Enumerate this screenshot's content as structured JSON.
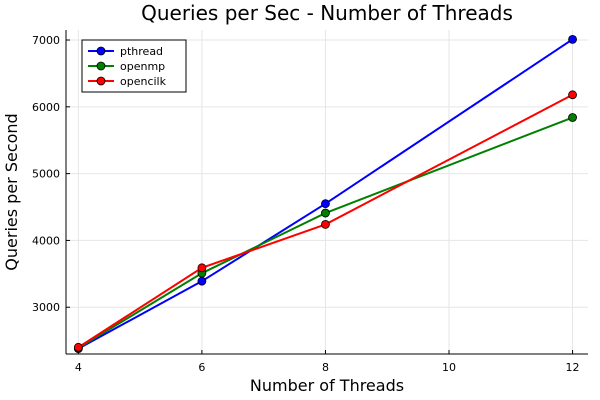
{
  "chart_data": {
    "type": "line",
    "title": "Queries per Sec - Number of Threads",
    "xlabel": "Number of Threads",
    "ylabel": "Queries per Second",
    "x": [
      4,
      6,
      8,
      12
    ],
    "xticks": [
      4,
      6,
      8,
      10,
      12
    ],
    "yticks": [
      3000,
      4000,
      5000,
      6000,
      7000
    ],
    "xlim": [
      3.8,
      12.25
    ],
    "ylim": [
      2300,
      7150
    ],
    "grid": true,
    "legend_position": "top-left",
    "series": [
      {
        "name": "pthread",
        "color": "#0000ff",
        "values": [
          2380,
          3390,
          4550,
          7010
        ]
      },
      {
        "name": "openmp",
        "color": "#008000",
        "values": [
          2390,
          3510,
          4410,
          5840
        ]
      },
      {
        "name": "opencilk",
        "color": "#ff0000",
        "values": [
          2400,
          3590,
          4240,
          6180
        ]
      }
    ]
  }
}
